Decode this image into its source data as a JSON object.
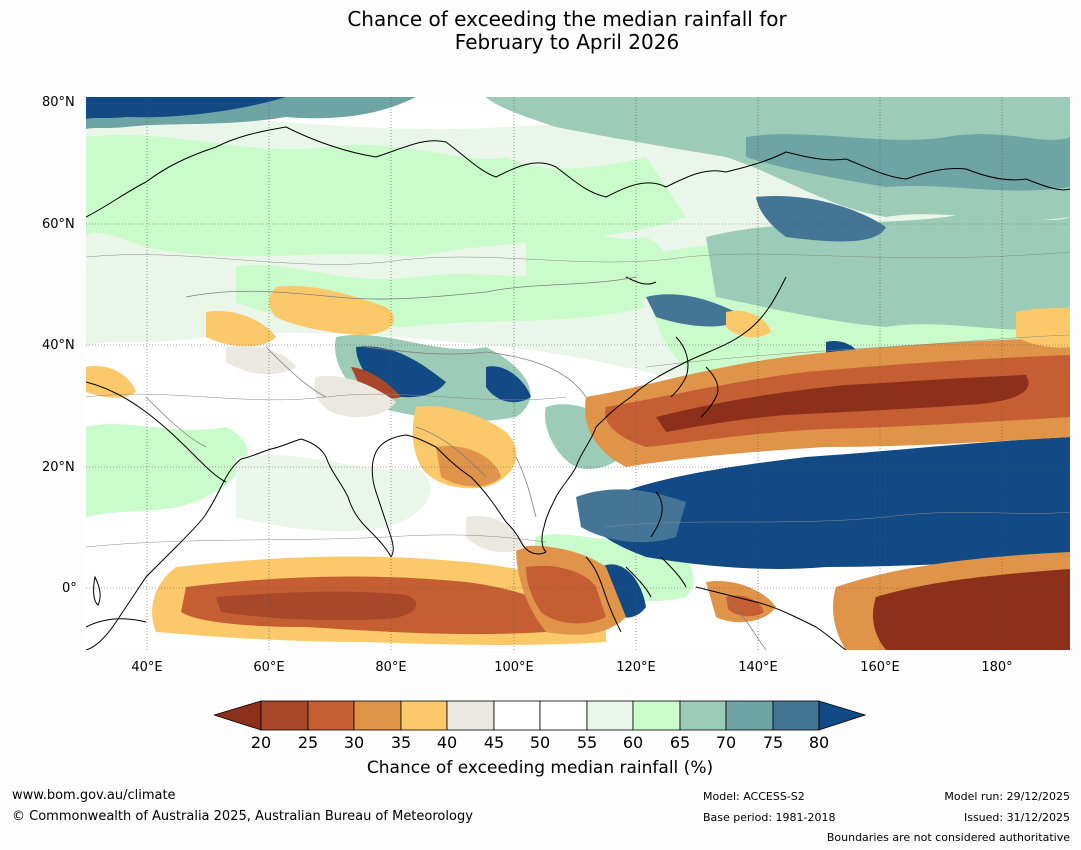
{
  "title": {
    "line1": "Chance of exceeding the median rainfall for",
    "line2": "February to April 2026"
  },
  "map": {
    "lat_labels": [
      "80°N",
      "60°N",
      "40°N",
      "20°N",
      "0°"
    ],
    "lon_labels": [
      "40°E",
      "60°E",
      "80°E",
      "100°E",
      "120°E",
      "140°E",
      "160°E",
      "180°"
    ],
    "extent": {
      "lon": [
        30,
        191
      ],
      "lat": [
        -10,
        80
      ]
    }
  },
  "colorbar": {
    "ticks": [
      "20",
      "25",
      "30",
      "35",
      "40",
      "45",
      "50",
      "55",
      "60",
      "65",
      "70",
      "75",
      "80"
    ],
    "colors": {
      "below20": "#8c2f1b",
      "c20_25": "#a9472a",
      "c25_30": "#c55e33",
      "c30_35": "#df9449",
      "c35_40": "#fcc96a",
      "c40_45": "#ebe7e1",
      "c45_50": "#ffffff",
      "c50_55": "#ffffff",
      "c55_60": "#eaf6ea",
      "c60_65": "#cafbca",
      "c65_70": "#9ccbb8",
      "c70_75": "#6fa4a5",
      "c75_80": "#447597",
      "above80": "#124a85"
    },
    "label": "Chance of exceeding median rainfall (%)"
  },
  "footer": {
    "website": "www.bom.gov.au/climate",
    "copyright": "© Commonwealth of Australia 2025, Australian Bureau of Meteorology",
    "model": "Model: ACCESS-S2",
    "base_period": "Base period: 1981-2018",
    "model_run": "Model run: 29/12/2025",
    "issued": "Issued: 31/12/2025",
    "disclaimer": "Boundaries are not considered authoritative"
  }
}
